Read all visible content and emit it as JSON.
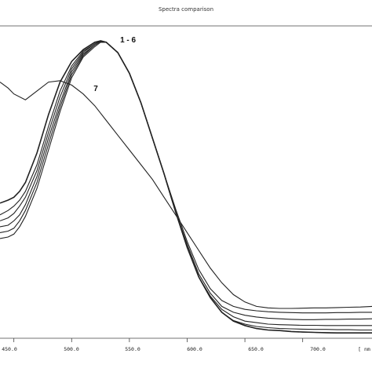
{
  "chart_data": {
    "type": "line",
    "title": "Spectra comparison",
    "x_tick_labels": [
      "450.0",
      "500.0",
      "550.0",
      "600.0",
      "650.0",
      "700.0",
      "[ nm"
    ],
    "x_ticks": [
      450,
      500,
      550,
      600,
      650,
      700
    ],
    "xlim": [
      438,
      760
    ],
    "ylim": [
      0,
      1
    ],
    "grid": false,
    "annotations": [
      {
        "text": "1 - 6",
        "x": 542,
        "y": 0.995
      },
      {
        "text": "7",
        "x": 519,
        "y": 0.83
      }
    ],
    "series": [
      {
        "name": "1",
        "x": [
          438,
          445,
          450,
          455,
          460,
          470,
          480,
          490,
          500,
          510,
          520,
          525,
          530,
          540,
          550,
          560,
          570,
          580,
          590,
          600,
          610,
          620,
          630,
          640,
          650,
          660,
          670,
          680,
          690,
          700,
          710,
          720,
          730,
          740,
          750,
          760
        ],
        "y": [
          0.45,
          0.46,
          0.47,
          0.49,
          0.52,
          0.62,
          0.75,
          0.86,
          0.93,
          0.97,
          0.995,
          1.0,
          0.995,
          0.96,
          0.89,
          0.79,
          0.67,
          0.55,
          0.42,
          0.3,
          0.2,
          0.13,
          0.08,
          0.05,
          0.035,
          0.025,
          0.02,
          0.018,
          0.015,
          0.013,
          0.012,
          0.011,
          0.01,
          0.01,
          0.01,
          0.01
        ]
      },
      {
        "name": "2",
        "x": [
          438,
          445,
          450,
          455,
          460,
          470,
          480,
          490,
          500,
          510,
          520,
          525,
          530,
          540,
          550,
          560,
          570,
          580,
          590,
          600,
          610,
          620,
          630,
          640,
          650,
          660,
          670,
          680,
          690,
          700,
          710,
          720,
          730,
          740,
          750,
          760
        ],
        "y": [
          0.41,
          0.425,
          0.44,
          0.46,
          0.49,
          0.58,
          0.71,
          0.83,
          0.915,
          0.965,
          0.99,
          1.0,
          0.995,
          0.96,
          0.89,
          0.79,
          0.67,
          0.55,
          0.42,
          0.3,
          0.2,
          0.13,
          0.08,
          0.05,
          0.035,
          0.025,
          0.02,
          0.018,
          0.015,
          0.013,
          0.012,
          0.011,
          0.01,
          0.01,
          0.01,
          0.01
        ]
      },
      {
        "name": "3",
        "x": [
          438,
          445,
          450,
          455,
          460,
          470,
          480,
          490,
          500,
          510,
          520,
          525,
          530,
          540,
          550,
          560,
          570,
          580,
          590,
          600,
          610,
          620,
          630,
          640,
          650,
          660,
          670,
          680,
          690,
          700,
          710,
          720,
          730,
          740,
          750,
          760
        ],
        "y": [
          0.39,
          0.4,
          0.415,
          0.44,
          0.47,
          0.56,
          0.69,
          0.81,
          0.905,
          0.96,
          0.99,
          1.0,
          0.995,
          0.96,
          0.89,
          0.79,
          0.67,
          0.55,
          0.42,
          0.3,
          0.2,
          0.13,
          0.08,
          0.052,
          0.04,
          0.032,
          0.028,
          0.025,
          0.024,
          0.023,
          0.022,
          0.022,
          0.021,
          0.021,
          0.02,
          0.02
        ]
      },
      {
        "name": "4",
        "x": [
          438,
          445,
          450,
          455,
          460,
          470,
          480,
          490,
          500,
          510,
          520,
          525,
          530,
          540,
          550,
          560,
          570,
          580,
          590,
          600,
          610,
          620,
          630,
          640,
          650,
          660,
          670,
          680,
          690,
          700,
          710,
          720,
          730,
          740,
          750,
          760
        ],
        "y": [
          0.37,
          0.375,
          0.39,
          0.41,
          0.445,
          0.54,
          0.67,
          0.79,
          0.895,
          0.955,
          0.985,
          0.998,
          0.995,
          0.96,
          0.89,
          0.79,
          0.67,
          0.55,
          0.42,
          0.3,
          0.2,
          0.135,
          0.09,
          0.065,
          0.05,
          0.045,
          0.04,
          0.038,
          0.037,
          0.036,
          0.036,
          0.035,
          0.035,
          0.035,
          0.035,
          0.035
        ]
      },
      {
        "name": "5",
        "x": [
          438,
          445,
          450,
          455,
          460,
          470,
          480,
          490,
          500,
          510,
          520,
          525,
          530,
          540,
          550,
          560,
          570,
          580,
          590,
          600,
          610,
          620,
          630,
          640,
          650,
          660,
          670,
          680,
          690,
          700,
          710,
          720,
          730,
          740,
          750,
          760
        ],
        "y": [
          0.35,
          0.355,
          0.365,
          0.39,
          0.425,
          0.52,
          0.65,
          0.775,
          0.885,
          0.95,
          0.985,
          0.998,
          0.995,
          0.96,
          0.89,
          0.79,
          0.67,
          0.55,
          0.42,
          0.31,
          0.21,
          0.145,
          0.1,
          0.08,
          0.07,
          0.064,
          0.06,
          0.058,
          0.056,
          0.055,
          0.055,
          0.056,
          0.056,
          0.057,
          0.057,
          0.058
        ]
      },
      {
        "name": "6",
        "x": [
          438,
          445,
          450,
          455,
          460,
          470,
          480,
          490,
          500,
          510,
          520,
          525,
          530,
          540,
          550,
          560,
          570,
          580,
          590,
          600,
          610,
          620,
          630,
          640,
          650,
          660,
          670,
          680,
          690,
          700,
          710,
          720,
          730,
          740,
          750,
          760
        ],
        "y": [
          0.33,
          0.335,
          0.345,
          0.37,
          0.405,
          0.5,
          0.63,
          0.76,
          0.875,
          0.945,
          0.98,
          0.995,
          0.995,
          0.96,
          0.89,
          0.79,
          0.67,
          0.55,
          0.43,
          0.32,
          0.225,
          0.16,
          0.12,
          0.1,
          0.09,
          0.085,
          0.082,
          0.08,
          0.079,
          0.078,
          0.078,
          0.078,
          0.079,
          0.079,
          0.08,
          0.08
        ]
      },
      {
        "name": "7",
        "x": [
          438,
          445,
          450,
          460,
          470,
          480,
          490,
          500,
          510,
          520,
          530,
          540,
          550,
          560,
          570,
          580,
          590,
          600,
          610,
          620,
          630,
          640,
          650,
          660,
          670,
          680,
          690,
          700,
          710,
          720,
          730,
          740,
          750,
          760
        ],
        "y": [
          0.86,
          0.84,
          0.82,
          0.8,
          0.83,
          0.86,
          0.865,
          0.85,
          0.82,
          0.78,
          0.73,
          0.68,
          0.63,
          0.58,
          0.53,
          0.47,
          0.41,
          0.35,
          0.29,
          0.23,
          0.18,
          0.14,
          0.115,
          0.1,
          0.095,
          0.093,
          0.093,
          0.094,
          0.095,
          0.095,
          0.096,
          0.097,
          0.098,
          0.1
        ]
      }
    ]
  }
}
